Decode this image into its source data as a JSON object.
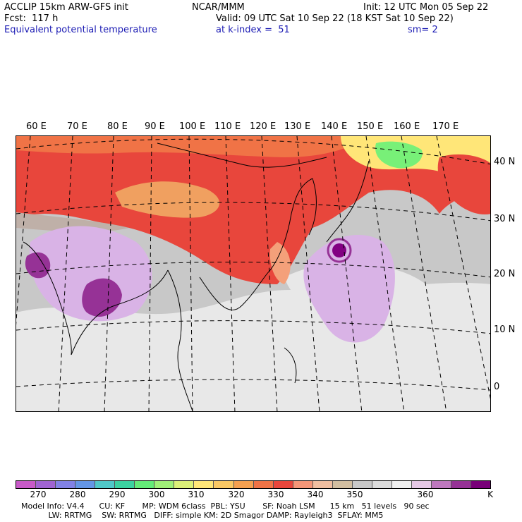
{
  "header": {
    "model_line": "ACCLIP 15km ARW-GFS init",
    "fcst_line": "Fcst:  117 h",
    "field_line": "Equivalent potential temperature",
    "center": "NCAR/MMM",
    "init_line": "Init: 12 UTC Mon 05 Sep 22",
    "valid_line": "Valid: 09 UTC Sat 10 Sep 22 (18 KST Sat 10 Sep 22)",
    "level_line": "at k-index =  51",
    "smooth_line": "sm= 2"
  },
  "map": {
    "lon_labels": [
      "60 E",
      "70 E",
      "80 E",
      "90 E",
      "100 E",
      "110 E",
      "120 E",
      "130 E",
      "140 E",
      "150 E",
      "160 E",
      "170 E"
    ],
    "lat_labels": [
      "40 N",
      "30 N",
      "20 N",
      "10 N",
      "0"
    ],
    "colors": {
      "magenta": "#c85ac8",
      "purple_dark": "#820082",
      "purple_mid": "#963296",
      "lavender": "#d9b3e6",
      "light_gray": "#e8e8e8",
      "gray": "#c8c8c8",
      "warm_gray": "#bfb0a8",
      "salmon": "#f4a07a",
      "orange": "#f0a060",
      "red_orange": "#f05a3c",
      "red": "#e8463c",
      "yellow": "#ffe678",
      "green": "#78f078"
    }
  },
  "colorbar": {
    "colors": [
      "#c85ac8",
      "#a064d2",
      "#8282e6",
      "#6496e6",
      "#50c8c8",
      "#3cd2a0",
      "#64eb78",
      "#a0f078",
      "#dcf078",
      "#ffe678",
      "#fac864",
      "#f5a050",
      "#f07346",
      "#e8463c",
      "#f59678",
      "#f0bea0",
      "#d2bea0",
      "#c8c8c8",
      "#dcdcdc",
      "#f0f0f0",
      "#e6c8e6",
      "#be78be",
      "#963296",
      "#780078"
    ],
    "ticks": [
      "270",
      "280",
      "290",
      "300",
      "310",
      "320",
      "330",
      "340",
      "350",
      "360"
    ],
    "unit": "K"
  },
  "footer": {
    "line1": "Model Info: V4.4      CU: KF       MP: WDM 6class  PBL: YSU       SF: Noah LSM      15 km   51 levels   90 sec",
    "line2": "           LW: RRTMG    SW: RRTMG   DIFF: simple KM: 2D Smagor DAMP: Rayleigh3  SFLAY: MM5"
  }
}
